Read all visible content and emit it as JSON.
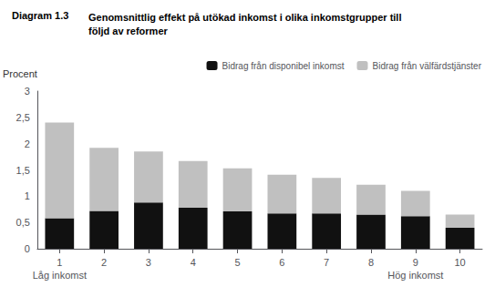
{
  "chart_data": {
    "type": "bar",
    "title": "Diagram 1.3",
    "subtitle": "Genomsnittlig effekt på utökad inkomst i olika inkomstgrupper till\nföljd av reformer",
    "ylabel": "Procent",
    "categories": [
      "1",
      "2",
      "3",
      "4",
      "5",
      "6",
      "7",
      "8",
      "9",
      "10"
    ],
    "annotations": [
      {
        "text": "Låg inkomst",
        "x": "1"
      },
      {
        "text": "Hög inkomst",
        "x": "9"
      }
    ],
    "series": [
      {
        "name": "Bidrag från disponibel inkomst",
        "color": "#111111",
        "values": [
          0.58,
          0.72,
          0.88,
          0.78,
          0.71,
          0.67,
          0.67,
          0.65,
          0.62,
          0.4
        ]
      },
      {
        "name": "Bidrag från välfärdstjänster",
        "color": "#c0c0c0",
        "values": [
          1.82,
          1.2,
          0.97,
          0.89,
          0.82,
          0.74,
          0.68,
          0.57,
          0.48,
          0.25
        ]
      }
    ],
    "stacked": true,
    "ylim": [
      0,
      3
    ],
    "yticks": [
      0,
      {
        "value": 0.5,
        "label": "0,5"
      },
      1,
      {
        "value": 1.5,
        "label": "1,5"
      },
      2,
      {
        "value": 2.5,
        "label": "2,5"
      },
      3
    ],
    "grid": false,
    "legend": "upper right"
  }
}
